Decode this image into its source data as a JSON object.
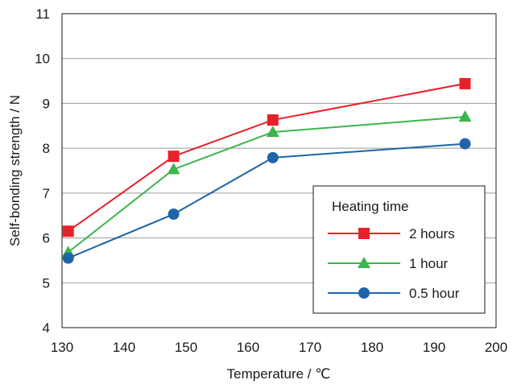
{
  "chart_data": {
    "type": "line",
    "title": "",
    "xlabel": "Temperature / ℃",
    "ylabel": "Self-bonding strength / N",
    "xlim": [
      130,
      200
    ],
    "ylim": [
      4,
      11
    ],
    "x_ticks": [
      130,
      140,
      150,
      160,
      170,
      180,
      190,
      200
    ],
    "y_ticks": [
      4,
      5,
      6,
      7,
      8,
      9,
      10,
      11
    ],
    "grid": "horizontal",
    "legend": {
      "title": "Heating time",
      "placement": "bottom-right"
    },
    "series": [
      {
        "name": "2 hours",
        "marker": "square",
        "color": "#e8202a",
        "x": [
          131,
          148,
          164,
          195
        ],
        "y": [
          6.15,
          7.82,
          8.63,
          9.44
        ]
      },
      {
        "name": "1 hour",
        "marker": "triangle",
        "color": "#3cb54a",
        "x": [
          131,
          148,
          164,
          195
        ],
        "y": [
          5.68,
          7.53,
          8.36,
          8.7
        ]
      },
      {
        "name": "0.5 hour",
        "marker": "circle",
        "color": "#1f64a8",
        "x": [
          131,
          148,
          164,
          195
        ],
        "y": [
          5.55,
          6.53,
          7.79,
          8.1
        ]
      }
    ]
  }
}
